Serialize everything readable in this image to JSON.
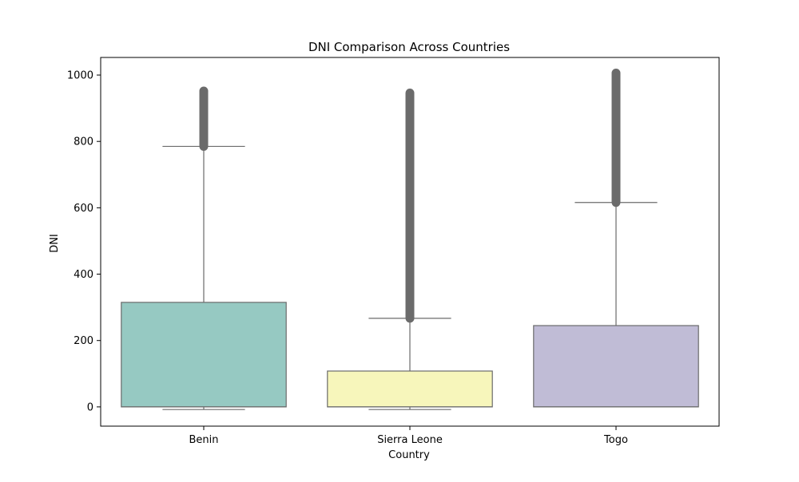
{
  "chart_data": {
    "type": "box",
    "title": "DNI Comparison Across Countries",
    "xlabel": "Country",
    "ylabel": "DNI",
    "ylim": [
      -58,
      1053
    ],
    "yticks": [
      0,
      200,
      400,
      600,
      800,
      1000
    ],
    "grid": false,
    "legend": "none",
    "categories": [
      "Benin",
      "Sierra Leone",
      "Togo"
    ],
    "boxes": [
      {
        "category": "Benin",
        "color": "#96c9c2",
        "whisker_low": -8,
        "q1": 0,
        "median": 0,
        "q3": 315,
        "whisker_high": 785,
        "outliers_min": 785,
        "outliers_max": 952
      },
      {
        "category": "Sierra Leone",
        "color": "#f7f6bb",
        "whisker_low": -8,
        "q1": 0,
        "median": 0,
        "q3": 108,
        "whisker_high": 267,
        "outliers_min": 267,
        "outliers_max": 946
      },
      {
        "category": "Togo",
        "color": "#c0bcd6",
        "whisker_low": 0,
        "q1": 0,
        "median": 0,
        "q3": 245,
        "whisker_high": 616,
        "outliers_min": 616,
        "outliers_max": 1006
      }
    ],
    "outlier_color": "#6b6b6b",
    "line_color": "#6b6b6b"
  }
}
